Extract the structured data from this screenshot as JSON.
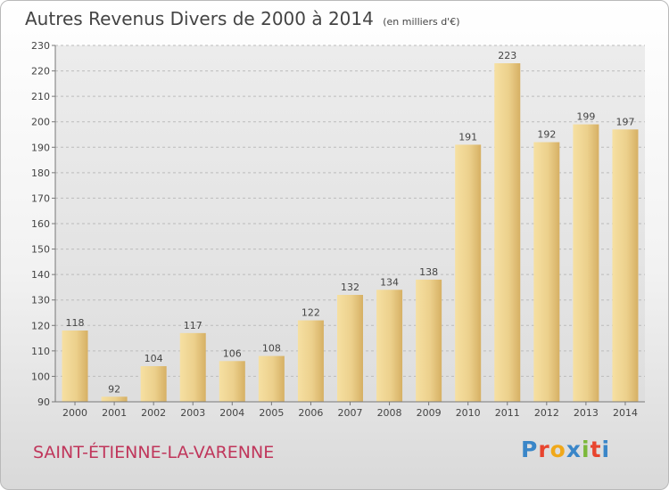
{
  "title": "Autres Revenus Divers de 2000 à 2014",
  "subtitle": "(en milliers d'€)",
  "commune": "SAINT-ÉTIENNE-LA-VARENNE",
  "logo": {
    "letters": [
      "P",
      "r",
      "o",
      "x",
      "i",
      "t",
      "i"
    ],
    "colors": [
      "#3a86c8",
      "#e8442e",
      "#f0a81a",
      "#3a86c8",
      "#7cb83a",
      "#e8442e",
      "#3a86c8"
    ]
  },
  "chart_data": {
    "type": "bar",
    "categories": [
      "2000",
      "2001",
      "2002",
      "2003",
      "2004",
      "2005",
      "2006",
      "2007",
      "2008",
      "2009",
      "2010",
      "2011",
      "2012",
      "2013",
      "2014"
    ],
    "values": [
      118,
      92,
      104,
      117,
      106,
      108,
      122,
      132,
      134,
      138,
      191,
      223,
      192,
      199,
      197
    ],
    "data_labels": [
      "118",
      "92",
      "104",
      "117",
      "106",
      "108",
      "122",
      "132",
      "134",
      "138",
      "191",
      "223",
      "192",
      "199",
      "197"
    ],
    "ylim": [
      90,
      230
    ],
    "yticks": [
      "90",
      "100",
      "110",
      "120",
      "130",
      "140",
      "150",
      "160",
      "170",
      "180",
      "190",
      "200",
      "210",
      "220",
      "230"
    ],
    "grid": true,
    "bar_color": "#e8c97c"
  }
}
